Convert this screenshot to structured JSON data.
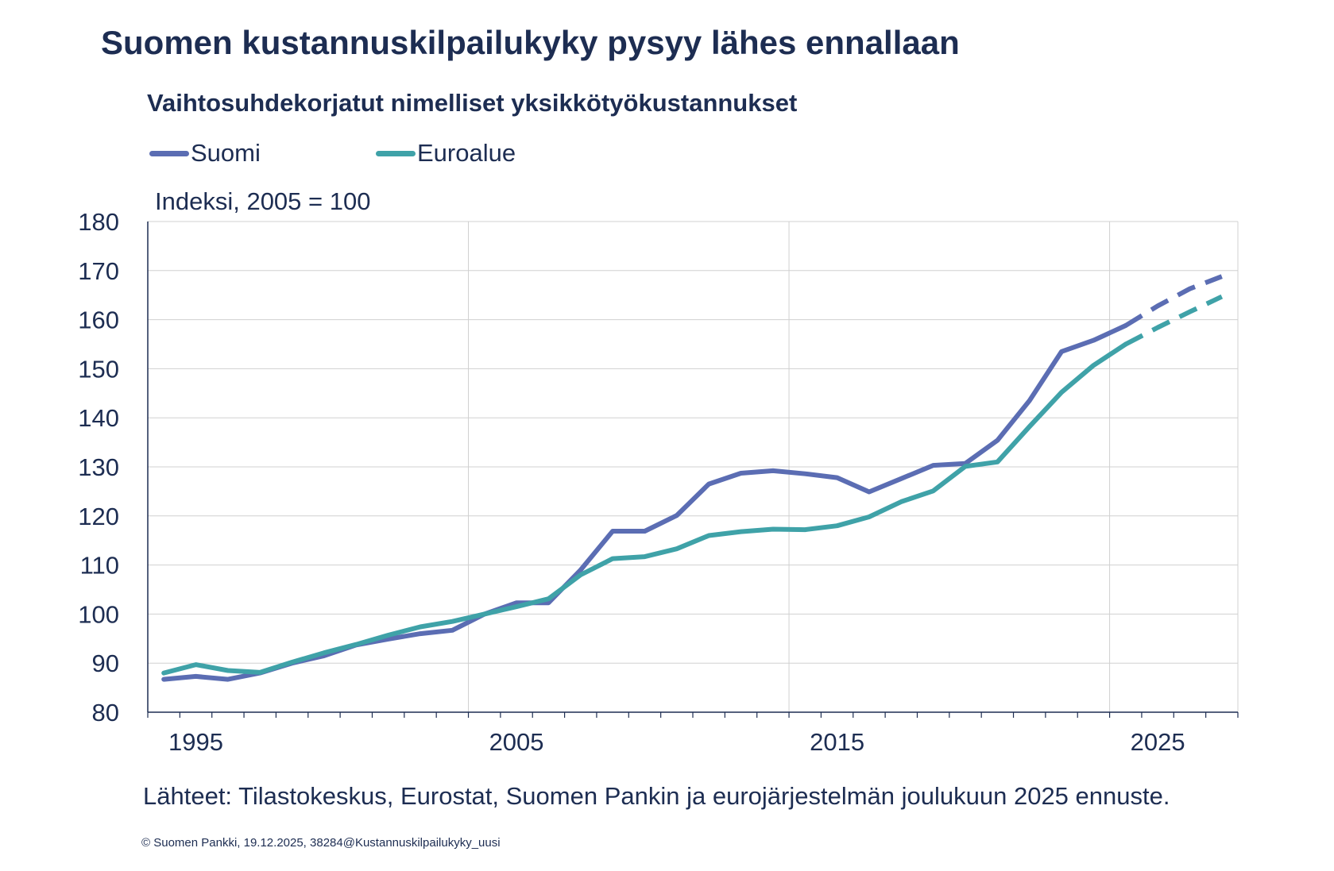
{
  "title": "Suomen kustannuskilpailukyky pysyy lähes ennallaan",
  "colors": {
    "suomi": "#5b6db3",
    "euroalue": "#3fa2a8",
    "grid": "#d0d0d0",
    "text": "#1d2d52"
  },
  "chart_data": {
    "type": "line",
    "title": "Vaihtosuhdekorjatut nimelliset yksikkötyökustannukset",
    "ylabel": "Indeksi, 2005 = 100",
    "xlabel": "",
    "ylim": [
      80,
      180
    ],
    "yticks": [
      "80",
      "90",
      "100",
      "110",
      "120",
      "130",
      "140",
      "150",
      "160",
      "170",
      "180"
    ],
    "xticks": [
      "1995",
      "2005",
      "2015",
      "2025"
    ],
    "xlim": [
      1994,
      2028
    ],
    "forecast_from": 2024,
    "x": [
      1994.5,
      1995.5,
      1996.5,
      1997.5,
      1998.5,
      1999.5,
      2000.5,
      2001.5,
      2002.5,
      2003.5,
      2004.5,
      2005.5,
      2006.5,
      2007.5,
      2008.5,
      2009.5,
      2010.5,
      2011.5,
      2012.5,
      2013.5,
      2014.5,
      2015.5,
      2016.5,
      2017.5,
      2018.5,
      2019.5,
      2020.5,
      2021.5,
      2022.5,
      2023.5,
      2024.5,
      2025.5,
      2026.5,
      2027.5
    ],
    "series": [
      {
        "name": "Suomi",
        "values": [
          86.7,
          87.3,
          86.7,
          88.0,
          90.0,
          91.5,
          93.7,
          94.9,
          96.0,
          96.7,
          100.0,
          102.3,
          102.3,
          109.0,
          116.9,
          116.9,
          120.1,
          126.5,
          128.7,
          129.2,
          128.6,
          127.8,
          124.9,
          127.6,
          130.3,
          130.7,
          135.4,
          143.5,
          153.5,
          155.8,
          158.8,
          162.8,
          166.3,
          168.8
        ]
      },
      {
        "name": "Euroalue",
        "values": [
          88.0,
          89.7,
          88.5,
          88.1,
          90.2,
          92.1,
          93.8,
          95.7,
          97.4,
          98.5,
          100.0,
          101.5,
          103.1,
          108.0,
          111.3,
          111.7,
          113.3,
          116.0,
          116.8,
          117.3,
          117.2,
          118.0,
          119.8,
          122.9,
          125.1,
          130.1,
          131.0,
          138.2,
          145.2,
          150.7,
          155.0,
          158.4,
          161.6,
          164.7
        ]
      }
    ]
  },
  "legend": [
    {
      "label": "Suomi"
    },
    {
      "label": "Euroalue"
    }
  ],
  "source": "Lähteet: Tilastokeskus, Eurostat, Suomen Pankin ja eurojärjestelmän joulukuun 2025 ennuste.",
  "copyright": "© Suomen Pankki, 19.12.2025, 38284@Kustannuskilpailukyky_uusi"
}
